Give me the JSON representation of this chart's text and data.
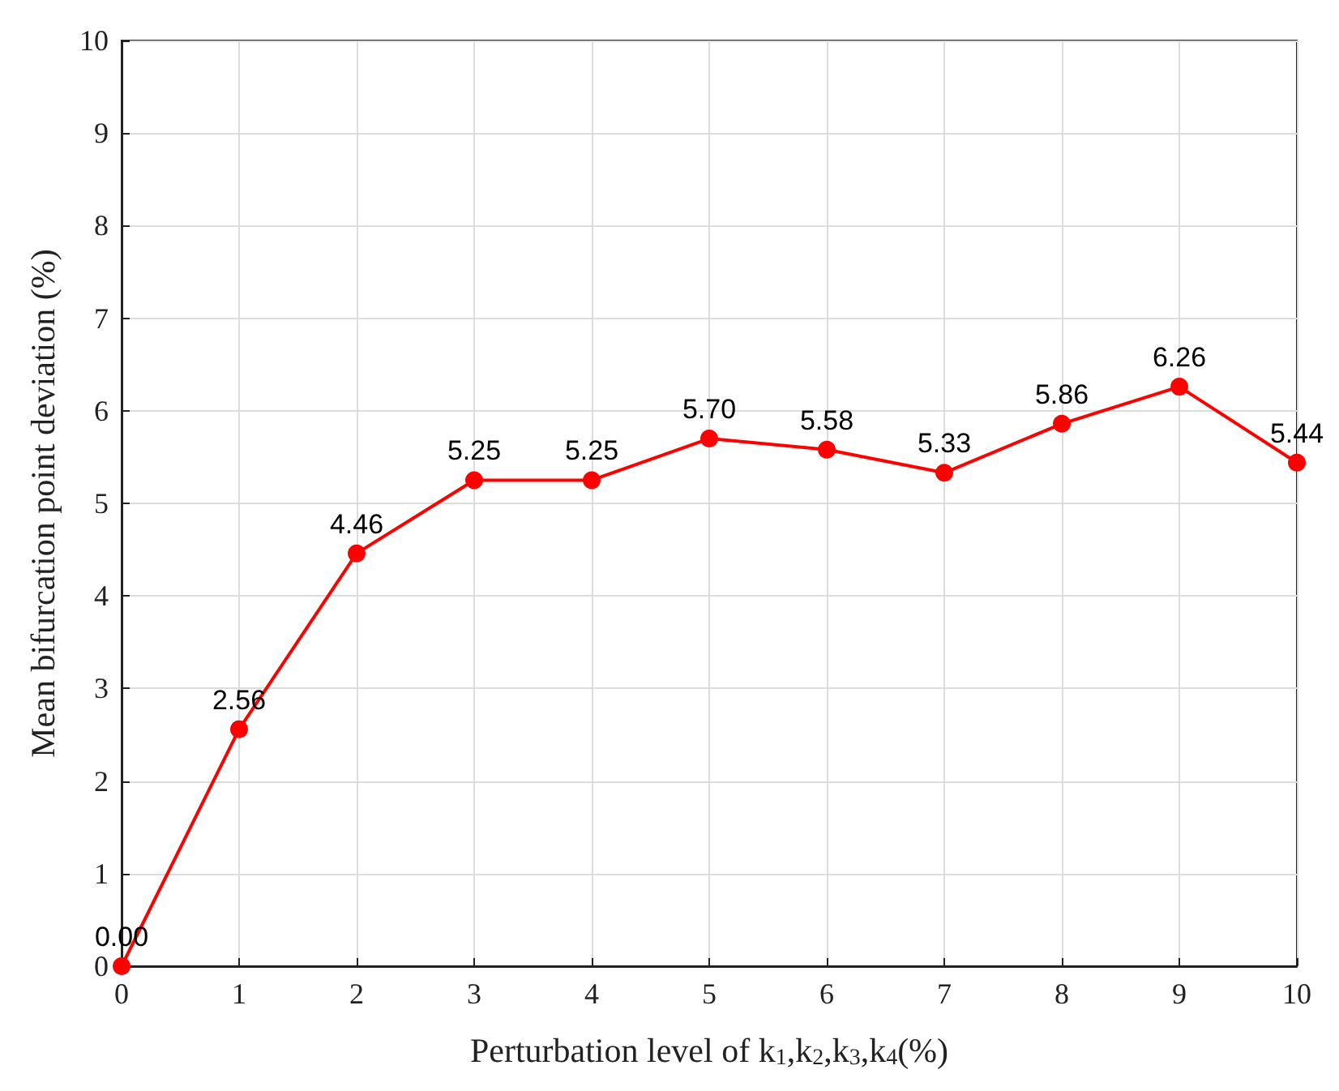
{
  "chart_data": {
    "type": "line",
    "xlabel": "Perturbation level of k$_{1}$,k$_{2}$,k$_{3}$,k$_{4}$(%)",
    "ylabel": "Mean bifurcation point deviation (%)",
    "x": [
      0,
      1,
      2,
      3,
      4,
      5,
      6,
      7,
      8,
      9,
      10
    ],
    "series": [
      {
        "color": "#ff0000",
        "values": [
          0.0,
          2.56,
          4.46,
          5.25,
          5.25,
          5.7,
          5.58,
          5.33,
          5.86,
          6.26,
          5.44
        ],
        "value_labels": [
          "0.00",
          "2.56",
          "4.46",
          "5.25",
          "5.25",
          "5.70",
          "5.58",
          "5.33",
          "5.86",
          "6.26",
          "5.44"
        ]
      }
    ],
    "xlim": [
      0,
      10
    ],
    "xticks": [
      0,
      1,
      2,
      3,
      4,
      5,
      6,
      7,
      8,
      9,
      10
    ],
    "ylim": [
      0,
      10
    ],
    "yticks": [
      0,
      1,
      2,
      3,
      4,
      5,
      6,
      7,
      8,
      9,
      10
    ],
    "grid": true,
    "marker": "circle",
    "line_style": "solid"
  }
}
